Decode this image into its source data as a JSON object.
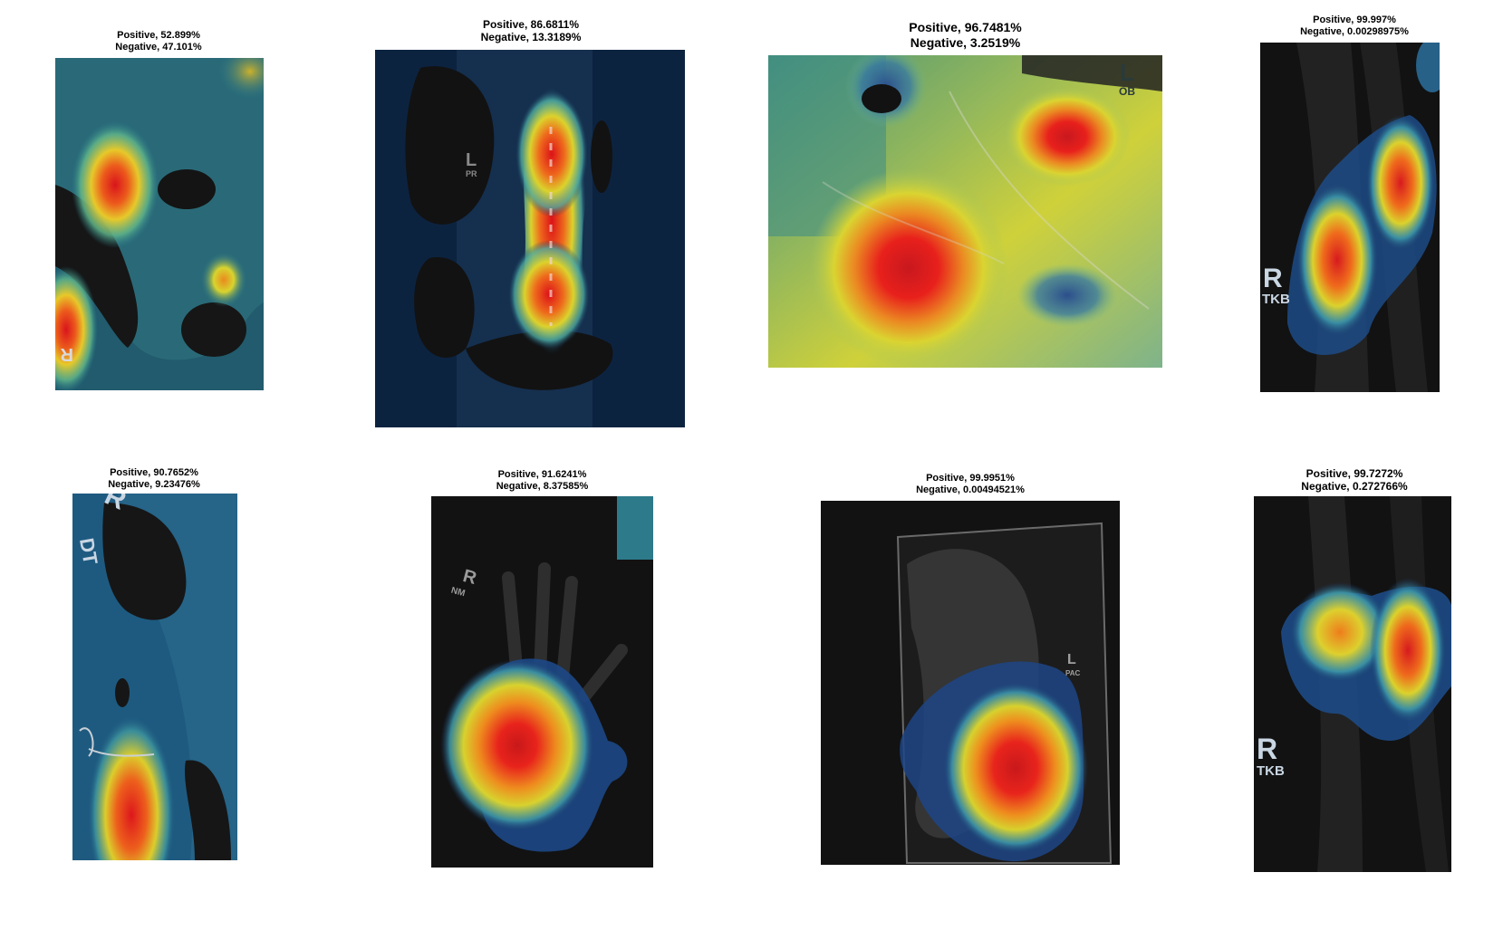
{
  "panels": [
    {
      "positive_label": "Positive, 52.899%",
      "negative_label": "Negative, 47.101%",
      "positive_pct": 52.899,
      "negative_pct": 47.101,
      "markers": [
        "R"
      ]
    },
    {
      "positive_label": "Positive, 86.6811%",
      "negative_label": "Negative, 13.3189%",
      "positive_pct": 86.6811,
      "negative_pct": 13.3189,
      "markers": [
        "L",
        "PR"
      ]
    },
    {
      "positive_label": "Positive, 96.7481%",
      "negative_label": "Negative, 3.2519%",
      "positive_pct": 96.7481,
      "negative_pct": 3.2519,
      "markers": [
        "L",
        "OB"
      ]
    },
    {
      "positive_label": "Positive, 99.997%",
      "negative_label": "Negative, 0.00298975%",
      "positive_pct": 99.997,
      "negative_pct": 0.00298975,
      "markers": [
        "R",
        "TKB"
      ]
    },
    {
      "positive_label": "Positive, 90.7652%",
      "negative_label": "Negative, 9.23476%",
      "positive_pct": 90.7652,
      "negative_pct": 9.23476,
      "markers": [
        "R",
        "DT"
      ]
    },
    {
      "positive_label": "Positive, 91.6241%",
      "negative_label": "Negative, 8.37585%",
      "positive_pct": 91.6241,
      "negative_pct": 8.37585,
      "markers": [
        "R",
        "NM"
      ]
    },
    {
      "positive_label": "Positive, 99.9951%",
      "negative_label": "Negative, 0.00494521%",
      "positive_pct": 99.9951,
      "negative_pct": 0.00494521,
      "markers": [
        "L",
        "PAC"
      ]
    },
    {
      "positive_label": "Positive, 99.7272%",
      "negative_label": "Negative, 0.272766%",
      "positive_pct": 99.7272,
      "negative_pct": 0.272766,
      "markers": [
        "R",
        "TKB"
      ]
    }
  ],
  "colors": {
    "heat_red": "#e8141e",
    "heat_orange": "#f07a1a",
    "heat_yellow": "#e2d428",
    "heat_green": "#6cbf6a",
    "heat_teal": "#2f8f9a",
    "heat_blue": "#1d4e8a",
    "background_dark": "#111111",
    "caption_text": "#000000"
  }
}
